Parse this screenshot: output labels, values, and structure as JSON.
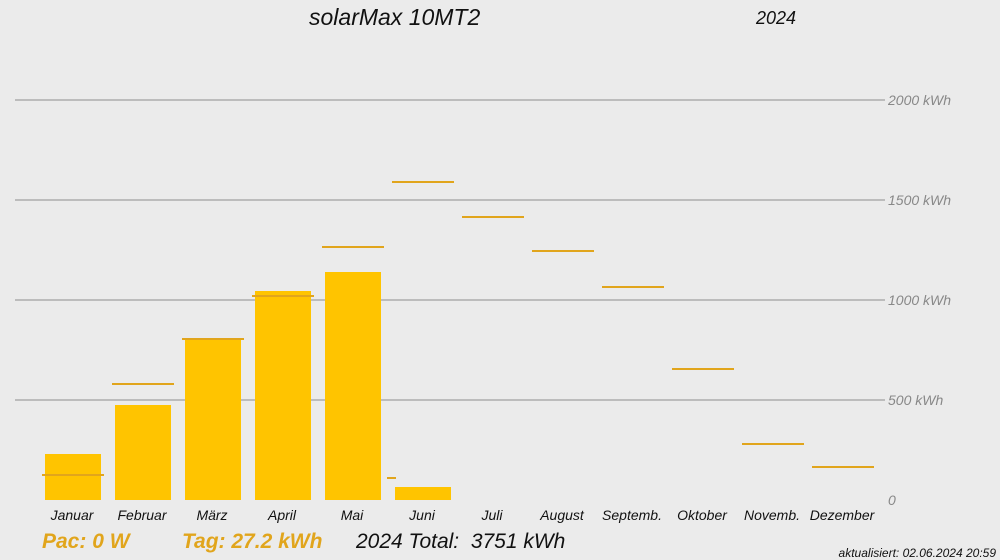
{
  "header": {
    "title": "solarMax 10MT2",
    "year": "2024"
  },
  "footer": {
    "pac": "Pac: 0 W",
    "tag": "Tag: 27.2 kWh",
    "total": "2024 Total:  3751 kWh",
    "updated": "aktualisiert: 02.06.2024 20:59"
  },
  "colors": {
    "bar": "#ffc400",
    "target_line": "#e1a51c",
    "grid": "#8c8c8c",
    "axis_label": "#888888",
    "background": "#ebebeb"
  },
  "chart_data": {
    "type": "bar",
    "title": "solarMax 10MT2",
    "categories": [
      "Januar",
      "Februar",
      "März",
      "April",
      "Mai",
      "Juni",
      "Juli",
      "August",
      "Septemb.",
      "Oktober",
      "Novemb.",
      "Dezember"
    ],
    "series": [
      {
        "values": [
          230,
          475,
          800,
          1045,
          1140,
          65,
          0,
          0,
          0,
          0,
          0,
          0
        ]
      },
      {
        "values": [
          125,
          580,
          805,
          1020,
          1265,
          1590,
          1415,
          1245,
          1065,
          655,
          280,
          165
        ]
      }
    ],
    "ylim": [
      0,
      2000
    ],
    "y_ticks": [
      {
        "value": 0,
        "label": "0"
      },
      {
        "value": 500,
        "label": "500 kWh"
      },
      {
        "value": 1000,
        "label": "1000 kWh"
      },
      {
        "value": 1500,
        "label": "1500 kWh"
      },
      {
        "value": 2000,
        "label": "2000 kWh"
      }
    ],
    "grid": true,
    "daily_marker": {
      "category": "Juni",
      "value": 110
    }
  }
}
